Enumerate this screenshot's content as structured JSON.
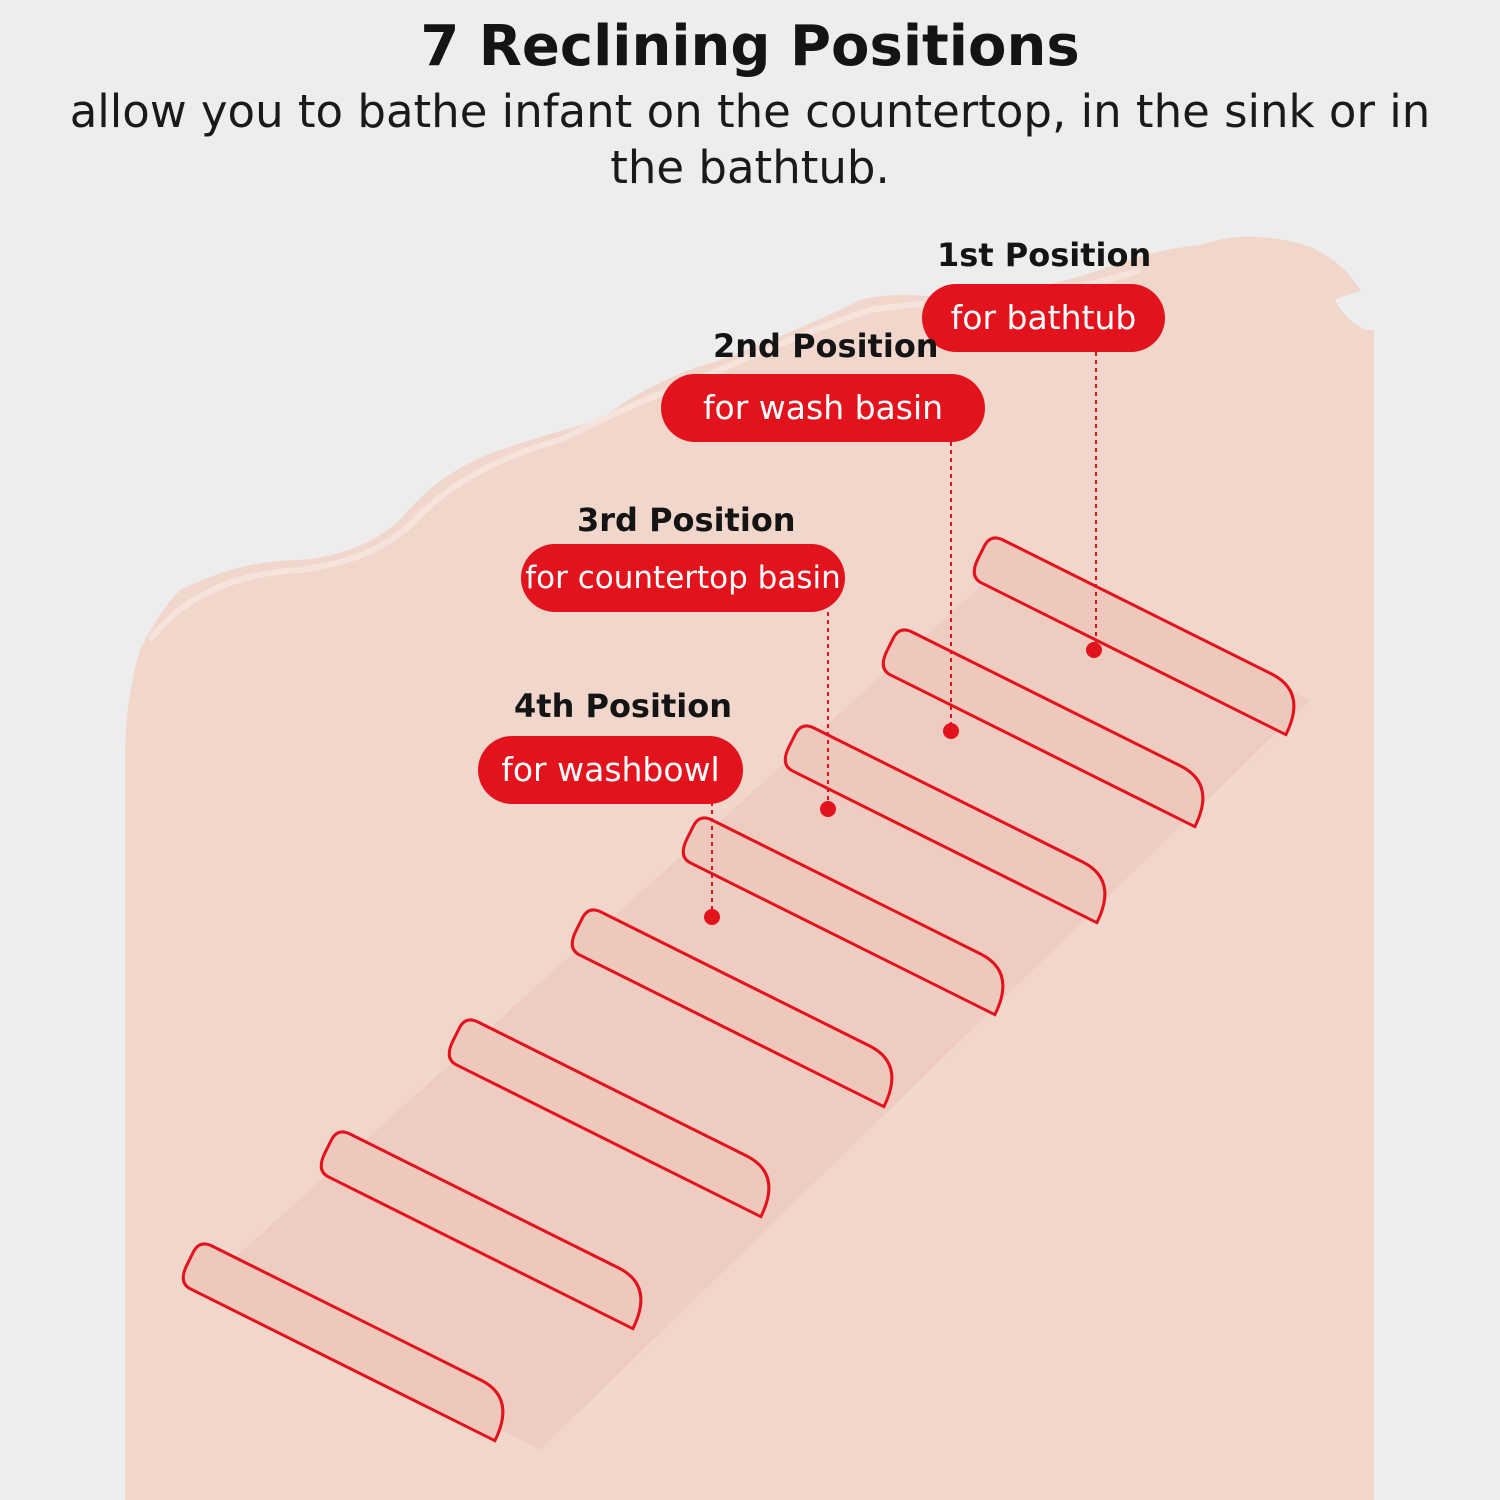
{
  "header": {
    "title": "7 Reclining Positions",
    "subtitle": "allow you to bathe infant on the countertop, in the sink or in the bathtub."
  },
  "positions": [
    {
      "title": "1st Position",
      "label": "for bathtub"
    },
    {
      "title": "2nd Position",
      "label": "for wash basin"
    },
    {
      "title": "3rd Position",
      "label": "for countertop basin"
    },
    {
      "title": "4th Position",
      "label": "for washbowl"
    }
  ],
  "colors": {
    "background": "#ededed",
    "tub": "#f1d6cc",
    "accent_red": "#e3131d",
    "ridge": "#efc8bd"
  }
}
